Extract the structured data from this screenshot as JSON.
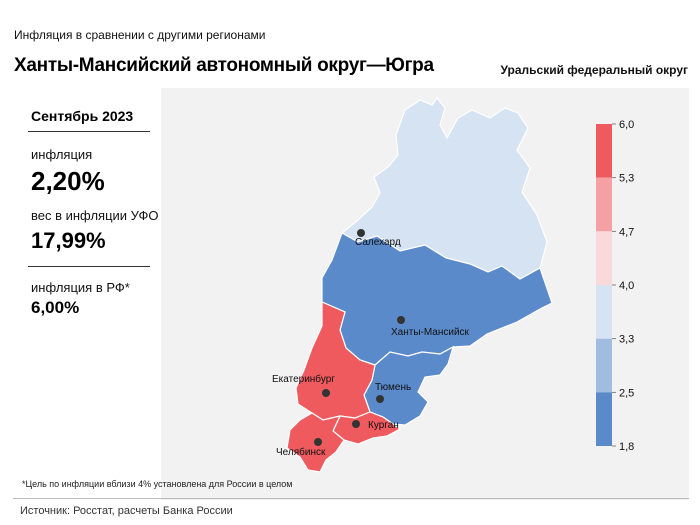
{
  "header": {
    "subtitle": "Инфляция  в сравнении  с другими регионами",
    "title": "Ханты-Мансийский автономный округ—Югра",
    "district": "Уральский федеральный округ"
  },
  "stats": {
    "period": "Сентябрь 2023",
    "inflation_label": "инфляция",
    "inflation_value": "2,20%",
    "weight_label": "вес в инфляции  УФО",
    "weight_value": "17,99%",
    "rf_label": "инфляция  в РФ*",
    "rf_value": "6,00%"
  },
  "legend": {
    "ticks": [
      "6,0",
      "5,3",
      "4,7",
      "4,0",
      "3,3",
      "2,5",
      "1,8"
    ],
    "colors": [
      "#ee5a5e",
      "#f5a0a3",
      "#fbd8da",
      "#d6e3f2",
      "#a0bde0",
      "#5a8ac9"
    ]
  },
  "map": {
    "cities": [
      {
        "name": "Салехард"
      },
      {
        "name": "Ханты-Мансийск"
      },
      {
        "name": "Екатеринбург"
      },
      {
        "name": "Тюмень"
      },
      {
        "name": "Курган"
      },
      {
        "name": "Челябинск"
      }
    ],
    "region_colors": {
      "yamal": "#d6e3f2",
      "khmao": "#5a8ac9",
      "tyumen": "#5a8ac9",
      "sverdlovsk": "#ee5a5e",
      "kurgan": "#ee5a5e",
      "chelyabinsk": "#ee5a5e"
    }
  },
  "footnote": "*Цель по инфляции вблизи 4% установлена для России в целом",
  "source": "Источник: Росстат, расчеты Банка России"
}
